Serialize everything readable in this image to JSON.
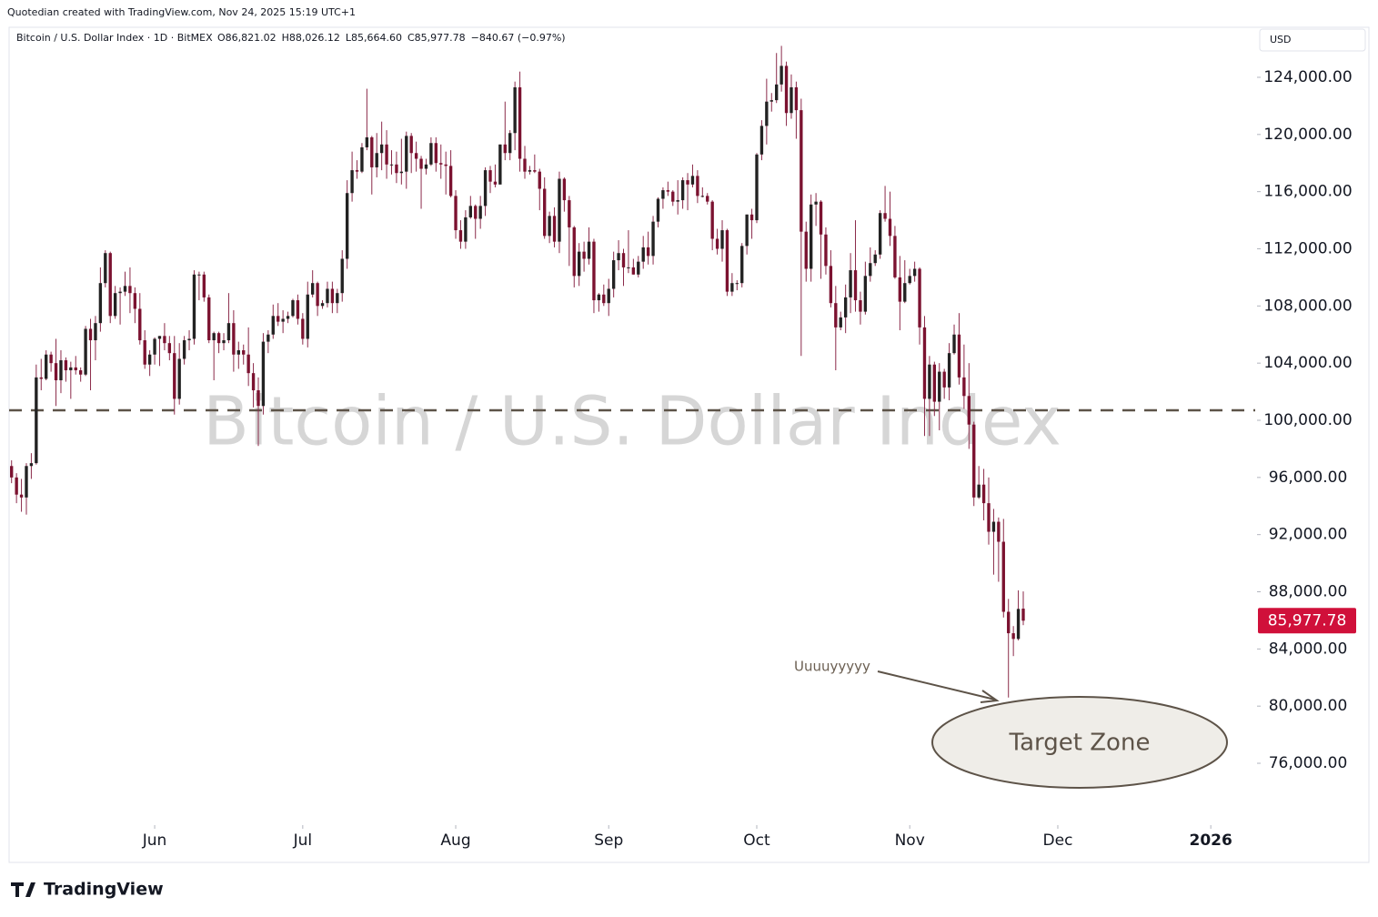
{
  "credit": "Quotedian created with TradingView.com, Nov 24, 2025 15:19 UTC+1",
  "currency": "USD",
  "brand": "TradingView",
  "chart_data": {
    "type": "candlestick",
    "title": "Bitcoin / U.S. Dollar Index",
    "symbol": "Bitcoin / U.S. Dollar Index · 1D · BitMEX",
    "ohlc_text": [
      "O86,821.02",
      "H88,026.12",
      "L85,664.60",
      "C85,977.78"
    ],
    "change": "−840.67 (−0.97%)",
    "up_color": "#222222",
    "down_color": "#7b1230",
    "wick_color": "#8b2a4a",
    "ohlc": [
      [
        96800,
        97200,
        95600,
        96000
      ],
      [
        96000,
        96300,
        94200,
        94800
      ],
      [
        94800,
        95900,
        93600,
        94600
      ],
      [
        94600,
        97000,
        93400,
        96800
      ],
      [
        96800,
        97700,
        95900,
        97000
      ],
      [
        97000,
        103900,
        96900,
        103000
      ],
      [
        103000,
        104300,
        102100,
        102900
      ],
      [
        102900,
        104900,
        102800,
        104600
      ],
      [
        104600,
        104800,
        103400,
        104000
      ],
      [
        104000,
        105700,
        101000,
        102800
      ],
      [
        102800,
        104900,
        101900,
        104200
      ],
      [
        104200,
        104400,
        102700,
        103500
      ],
      [
        103500,
        104100,
        101500,
        103700
      ],
      [
        103700,
        104500,
        103200,
        103500
      ],
      [
        103500,
        103700,
        102700,
        103200
      ],
      [
        103200,
        106600,
        103100,
        106400
      ],
      [
        106400,
        107100,
        102100,
        105600
      ],
      [
        105600,
        107300,
        104200,
        106800
      ],
      [
        106800,
        110700,
        106200,
        109600
      ],
      [
        109600,
        111900,
        109300,
        111700
      ],
      [
        111700,
        111800,
        106800,
        107300
      ],
      [
        107300,
        109400,
        107100,
        108900
      ],
      [
        108900,
        109300,
        106700,
        109000
      ],
      [
        109000,
        110400,
        108700,
        109400
      ],
      [
        109400,
        110700,
        107500,
        108900
      ],
      [
        108900,
        109300,
        106800,
        107800
      ],
      [
        107800,
        108900,
        105300,
        105600
      ],
      [
        105600,
        106300,
        103600,
        103900
      ],
      [
        103900,
        104900,
        103100,
        104600
      ],
      [
        104600,
        105800,
        103900,
        105700
      ],
      [
        105700,
        105900,
        103800,
        105900
      ],
      [
        105900,
        106800,
        104900,
        105400
      ],
      [
        105400,
        105900,
        104200,
        104700
      ],
      [
        104700,
        105900,
        100400,
        101500
      ],
      [
        101500,
        105400,
        101100,
        104300
      ],
      [
        104300,
        105900,
        103900,
        105600
      ],
      [
        105600,
        106300,
        104900,
        105700
      ],
      [
        105700,
        110500,
        105300,
        110200
      ],
      [
        110200,
        110400,
        108400,
        110200
      ],
      [
        110200,
        110400,
        108300,
        108600
      ],
      [
        108600,
        108800,
        105400,
        105600
      ],
      [
        105600,
        106200,
        102800,
        106100
      ],
      [
        106100,
        106200,
        104700,
        105400
      ],
      [
        105400,
        106100,
        104900,
        105600
      ],
      [
        105600,
        108900,
        105400,
        106800
      ],
      [
        106800,
        107700,
        103400,
        104600
      ],
      [
        104600,
        105500,
        103600,
        104900
      ],
      [
        104900,
        105300,
        103900,
        104600
      ],
      [
        104600,
        106500,
        102400,
        103300
      ],
      [
        103300,
        104000,
        100900,
        102100
      ],
      [
        102100,
        103000,
        98200,
        101000
      ],
      [
        101000,
        106100,
        100400,
        105500
      ],
      [
        105500,
        106300,
        104700,
        106000
      ],
      [
        106000,
        108100,
        105700,
        107300
      ],
      [
        107300,
        108200,
        106600,
        106900
      ],
      [
        106900,
        107700,
        106100,
        107100
      ],
      [
        107100,
        107600,
        106800,
        107300
      ],
      [
        107300,
        108500,
        107200,
        108400
      ],
      [
        108400,
        108800,
        106700,
        107100
      ],
      [
        107100,
        107500,
        105300,
        105700
      ],
      [
        105700,
        109700,
        105100,
        108800
      ],
      [
        108800,
        110500,
        108600,
        109600
      ],
      [
        109600,
        109700,
        107300,
        108000
      ],
      [
        108000,
        108400,
        107800,
        108200
      ],
      [
        108200,
        109700,
        107900,
        109200
      ],
      [
        109200,
        109700,
        107500,
        108200
      ],
      [
        108200,
        109200,
        107500,
        108900
      ],
      [
        108900,
        111900,
        108300,
        111300
      ],
      [
        111300,
        116800,
        110600,
        115900
      ],
      [
        115900,
        118800,
        115300,
        117500
      ],
      [
        117500,
        118200,
        116900,
        117400
      ],
      [
        117400,
        119400,
        117300,
        119100
      ],
      [
        119100,
        123200,
        118900,
        119800
      ],
      [
        119800,
        119900,
        115800,
        117700
      ],
      [
        117700,
        120100,
        117000,
        118700
      ],
      [
        118700,
        120900,
        117500,
        119300
      ],
      [
        119300,
        120300,
        116900,
        117900
      ],
      [
        117900,
        118900,
        117200,
        117900
      ],
      [
        117900,
        118800,
        116600,
        117300
      ],
      [
        117300,
        119700,
        116500,
        117400
      ],
      [
        117400,
        120200,
        116200,
        119900
      ],
      [
        119900,
        120100,
        117300,
        118700
      ],
      [
        118700,
        119500,
        117400,
        118300
      ],
      [
        118300,
        118500,
        114800,
        117600
      ],
      [
        117600,
        118300,
        117200,
        117900
      ],
      [
        117900,
        119800,
        117800,
        119400
      ],
      [
        119400,
        119800,
        117400,
        118000
      ],
      [
        118000,
        119300,
        116900,
        117900
      ],
      [
        117900,
        118800,
        115800,
        117800
      ],
      [
        117800,
        118900,
        115600,
        115700
      ],
      [
        115700,
        116100,
        112700,
        113300
      ],
      [
        113300,
        114000,
        112000,
        112500
      ],
      [
        112500,
        114700,
        112000,
        114200
      ],
      [
        114200,
        115700,
        114100,
        115000
      ],
      [
        115000,
        115100,
        112700,
        114100
      ],
      [
        114100,
        115700,
        113400,
        115000
      ],
      [
        115000,
        117700,
        114300,
        117500
      ],
      [
        117500,
        117800,
        115900,
        116700
      ],
      [
        116700,
        117900,
        116300,
        116500
      ],
      [
        116500,
        119300,
        116500,
        119300
      ],
      [
        119300,
        122300,
        118200,
        118700
      ],
      [
        118700,
        120300,
        118200,
        120100
      ],
      [
        120100,
        123700,
        118900,
        123300
      ],
      [
        123300,
        124400,
        117400,
        118300
      ],
      [
        118300,
        119200,
        116900,
        117400
      ],
      [
        117400,
        117800,
        117200,
        117500
      ],
      [
        117500,
        118600,
        117300,
        117400
      ],
      [
        117400,
        117600,
        114700,
        116200
      ],
      [
        116200,
        117000,
        112700,
        112900
      ],
      [
        112900,
        114600,
        112400,
        114300
      ],
      [
        114300,
        114900,
        112100,
        112500
      ],
      [
        112500,
        117400,
        111700,
        116900
      ],
      [
        116900,
        117000,
        114600,
        115400
      ],
      [
        115400,
        115700,
        110800,
        113500
      ],
      [
        113500,
        113600,
        109300,
        110100
      ],
      [
        110100,
        112400,
        109400,
        111800
      ],
      [
        111800,
        112500,
        110400,
        111300
      ],
      [
        111300,
        113500,
        110900,
        112500
      ],
      [
        112500,
        112700,
        107500,
        108400
      ],
      [
        108400,
        108900,
        107600,
        108800
      ],
      [
        108800,
        109500,
        108000,
        108200
      ],
      [
        108200,
        109900,
        107300,
        109200
      ],
      [
        109200,
        111800,
        108600,
        111200
      ],
      [
        111200,
        112600,
        110500,
        111700
      ],
      [
        111700,
        112000,
        109400,
        110700
      ],
      [
        110700,
        113300,
        110300,
        110700
      ],
      [
        110700,
        111300,
        110200,
        110200
      ],
      [
        110200,
        111500,
        110000,
        111100
      ],
      [
        111100,
        112900,
        110600,
        112100
      ],
      [
        112100,
        113200,
        110900,
        111500
      ],
      [
        111500,
        114300,
        110900,
        113900
      ],
      [
        113900,
        115600,
        113500,
        115500
      ],
      [
        115500,
        116300,
        114800,
        116100
      ],
      [
        116100,
        116700,
        115700,
        116000
      ],
      [
        116000,
        116100,
        115000,
        115300
      ],
      [
        115300,
        116800,
        114400,
        115400
      ],
      [
        115400,
        117000,
        114800,
        116800
      ],
      [
        116800,
        117300,
        114700,
        116500
      ],
      [
        116500,
        117900,
        116300,
        117100
      ],
      [
        117100,
        117500,
        115200,
        115700
      ],
      [
        115700,
        116300,
        115600,
        115700
      ],
      [
        115700,
        115900,
        115100,
        115300
      ],
      [
        115300,
        115400,
        111900,
        112700
      ],
      [
        112700,
        113400,
        111600,
        112000
      ],
      [
        112000,
        114000,
        111100,
        113300
      ],
      [
        113300,
        113400,
        108700,
        109000
      ],
      [
        109000,
        110300,
        108700,
        109600
      ],
      [
        109600,
        109800,
        109100,
        109600
      ],
      [
        109600,
        112400,
        109300,
        112200
      ],
      [
        112200,
        114400,
        111600,
        114400
      ],
      [
        114400,
        114800,
        112700,
        114000
      ],
      [
        114000,
        118700,
        113800,
        118600
      ],
      [
        118600,
        121000,
        118200,
        120600
      ],
      [
        120600,
        123900,
        119300,
        122300
      ],
      [
        122300,
        122900,
        121600,
        122400
      ],
      [
        122400,
        125700,
        122200,
        123500
      ],
      [
        123500,
        126200,
        123000,
        124800
      ],
      [
        124800,
        125100,
        120600,
        121500
      ],
      [
        121500,
        124200,
        121100,
        123300
      ],
      [
        123300,
        123700,
        119700,
        121700
      ],
      [
        121700,
        122500,
        104500,
        113200
      ],
      [
        113200,
        113900,
        109700,
        110600
      ],
      [
        110600,
        115800,
        109700,
        115100
      ],
      [
        115100,
        115900,
        113600,
        115300
      ],
      [
        115300,
        115400,
        109900,
        113000
      ],
      [
        113000,
        113500,
        110200,
        110800
      ],
      [
        110800,
        111900,
        107900,
        108200
      ],
      [
        108200,
        109400,
        103500,
        106500
      ],
      [
        106500,
        107600,
        106300,
        107200
      ],
      [
        107200,
        109500,
        106100,
        108600
      ],
      [
        108600,
        111700,
        107500,
        110500
      ],
      [
        110500,
        114000,
        107600,
        108400
      ],
      [
        108400,
        109000,
        106700,
        107600
      ],
      [
        107600,
        111100,
        107400,
        110100
      ],
      [
        110100,
        112100,
        109700,
        111000
      ],
      [
        111000,
        111900,
        110800,
        111600
      ],
      [
        111600,
        114700,
        111300,
        114500
      ],
      [
        114500,
        116400,
        113900,
        114100
      ],
      [
        114100,
        116000,
        112200,
        112900
      ],
      [
        112900,
        113600,
        109900,
        110000
      ],
      [
        110000,
        111500,
        106300,
        108300
      ],
      [
        108300,
        111200,
        108200,
        109600
      ],
      [
        109600,
        110600,
        109500,
        110100
      ],
      [
        110100,
        111100,
        109700,
        110600
      ],
      [
        110600,
        110700,
        105300,
        106500
      ],
      [
        106500,
        107300,
        98900,
        101500
      ],
      [
        101500,
        104500,
        98900,
        103900
      ],
      [
        103900,
        104100,
        100300,
        101300
      ],
      [
        101300,
        104000,
        99300,
        103400
      ],
      [
        103400,
        103600,
        101500,
        102300
      ],
      [
        102300,
        105400,
        101400,
        104700
      ],
      [
        104700,
        106700,
        104600,
        106000
      ],
      [
        106000,
        107500,
        102500,
        103000
      ],
      [
        103000,
        105300,
        100800,
        101700
      ],
      [
        101700,
        104000,
        98000,
        99700
      ],
      [
        99700,
        99900,
        94000,
        94600
      ],
      [
        94600,
        96800,
        94500,
        95500
      ],
      [
        95500,
        96600,
        93000,
        94200
      ],
      [
        94200,
        96000,
        91300,
        92200
      ],
      [
        92200,
        93800,
        89200,
        92900
      ],
      [
        92900,
        93200,
        88700,
        91500
      ],
      [
        91500,
        93100,
        86200,
        86600
      ],
      [
        86600,
        87500,
        80600,
        85100
      ],
      [
        85100,
        85600,
        83500,
        84700
      ],
      [
        84700,
        88100,
        84600,
        86800
      ],
      [
        86821.02,
        88026.12,
        85664.6,
        85977.78
      ]
    ],
    "last_price_label": "85,977.78",
    "last_price_color": "#d0103a",
    "hline": 100700,
    "hline_color": "#5d5348",
    "annotation": "Uuuuyyyyy",
    "zone_label": "Target Zone",
    "xlim": [
      -0.5,
      252
    ],
    "xticks": [
      {
        "value": 29,
        "label": "Jun"
      },
      {
        "value": 59,
        "label": "Jul"
      },
      {
        "value": 90,
        "label": "Aug"
      },
      {
        "value": 121,
        "label": "Sep"
      },
      {
        "value": 151,
        "label": "Oct"
      },
      {
        "value": 182,
        "label": "Nov"
      },
      {
        "value": 212,
        "label": "Dec"
      },
      {
        "value": 243,
        "label": "2026"
      }
    ],
    "ylim": [
      71800,
      127500
    ],
    "yticks": [
      {
        "value": 76000,
        "label": "76,000.00"
      },
      {
        "value": 80000,
        "label": "80,000.00"
      },
      {
        "value": 84000,
        "label": "84,000.00"
      },
      {
        "value": 88000,
        "label": "88,000.00"
      },
      {
        "value": 92000,
        "label": "92,000.00"
      },
      {
        "value": 96000,
        "label": "96,000.00"
      },
      {
        "value": 100000,
        "label": "100,000.00"
      },
      {
        "value": 104000,
        "label": "104,000.00"
      },
      {
        "value": 108000,
        "label": "108,000.00"
      },
      {
        "value": 112000,
        "label": "112,000.00"
      },
      {
        "value": 116000,
        "label": "116,000.00"
      },
      {
        "value": 120000,
        "label": "120,000.00"
      },
      {
        "value": 124000,
        "label": "124,000.00"
      }
    ]
  }
}
